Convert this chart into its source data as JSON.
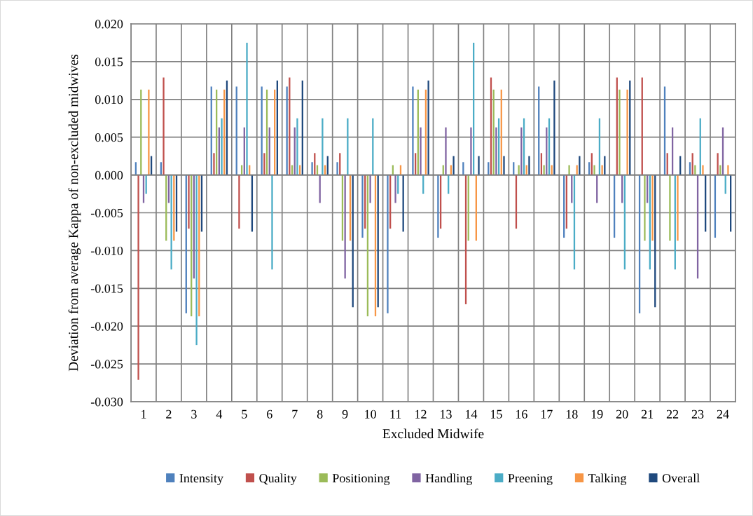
{
  "chart_data": {
    "type": "bar",
    "xlabel": "Excluded Midwife",
    "ylabel": "Deviation from average Kappa of non-excluded midwives",
    "categories": [
      "1",
      "2",
      "3",
      "4",
      "5",
      "6",
      "7",
      "8",
      "9",
      "10",
      "11",
      "12",
      "13",
      "14",
      "15",
      "16",
      "17",
      "18",
      "19",
      "20",
      "21",
      "22",
      "23",
      "24"
    ],
    "series": [
      {
        "name": "Intensity",
        "color": "#4f81bd",
        "values": [
          0.0017,
          0.0017,
          -0.0183,
          0.0117,
          0.0117,
          0.0117,
          0.0117,
          0.0017,
          0.0017,
          -0.0083,
          -0.0183,
          0.0117,
          -0.0083,
          0.0017,
          0.0017,
          0.0017,
          0.0117,
          -0.0083,
          0.0017,
          -0.0083,
          -0.0183,
          0.0117,
          0.0017,
          -0.0083
        ]
      },
      {
        "name": "Quality",
        "color": "#c0504d",
        "values": [
          -0.0271,
          0.0129,
          -0.0071,
          0.0029,
          -0.0071,
          0.0029,
          0.0129,
          0.0029,
          0.0029,
          -0.0071,
          -0.0071,
          0.0029,
          -0.0071,
          -0.0171,
          0.0129,
          -0.0071,
          0.0029,
          -0.0071,
          0.0029,
          0.0129,
          0.0129,
          0.0029,
          0.0029,
          0.0029
        ]
      },
      {
        "name": "Positioning",
        "color": "#9bbb59",
        "values": [
          0.0113,
          -0.0087,
          -0.0187,
          0.0113,
          0.0013,
          0.0113,
          0.0013,
          0.0013,
          -0.0087,
          -0.0187,
          0.0013,
          0.0113,
          0.0013,
          -0.0087,
          0.0113,
          0.0013,
          0.0013,
          0.0013,
          0.0013,
          0.0113,
          -0.0087,
          -0.0087,
          0.0013,
          0.0013
        ]
      },
      {
        "name": "Handling",
        "color": "#8064a2",
        "values": [
          -0.0037,
          -0.0037,
          -0.0137,
          0.0063,
          0.0063,
          0.0063,
          0.0063,
          -0.0037,
          -0.0137,
          -0.0037,
          -0.0037,
          0.0063,
          0.0063,
          0.0063,
          0.0063,
          0.0063,
          0.0063,
          -0.0037,
          -0.0037,
          -0.0037,
          -0.0037,
          0.0063,
          -0.0137,
          0.0063
        ]
      },
      {
        "name": "Preening",
        "color": "#4bacc6",
        "values": [
          -0.0025,
          -0.0125,
          -0.0225,
          0.0075,
          0.0175,
          -0.0125,
          0.0075,
          0.0075,
          0.0075,
          0.0075,
          -0.0025,
          -0.0025,
          -0.0025,
          0.0175,
          0.0075,
          0.0075,
          0.0075,
          -0.0125,
          0.0075,
          -0.0125,
          -0.0125,
          -0.0125,
          0.0075,
          -0.0025
        ]
      },
      {
        "name": "Talking",
        "color": "#f79646",
        "values": [
          0.0113,
          -0.0087,
          -0.0187,
          0.0113,
          0.0013,
          0.0113,
          0.0013,
          0.0013,
          -0.0087,
          -0.0187,
          0.0013,
          0.0113,
          0.0013,
          -0.0087,
          0.0113,
          0.0013,
          0.0013,
          0.0013,
          0.0013,
          0.0113,
          -0.0087,
          -0.0087,
          0.0013,
          0.0013
        ]
      },
      {
        "name": "Overall",
        "color": "#1f497d",
        "values": [
          0.0025,
          -0.0075,
          -0.0075,
          0.0125,
          -0.0075,
          0.0125,
          0.0125,
          0.0025,
          -0.0175,
          -0.0175,
          -0.0075,
          0.0125,
          0.0025,
          0.0025,
          0.0025,
          0.0025,
          0.0125,
          0.0025,
          0.0025,
          0.0125,
          -0.0175,
          0.0025,
          -0.0075,
          -0.0075
        ]
      }
    ],
    "ylim": [
      -0.03,
      0.02
    ],
    "yticks": [
      {
        "value": -0.03,
        "label": "-0.030"
      },
      {
        "value": -0.025,
        "label": "-0.025"
      },
      {
        "value": -0.02,
        "label": "-0.020"
      },
      {
        "value": -0.015,
        "label": "-0.015"
      },
      {
        "value": -0.01,
        "label": "-0.010"
      },
      {
        "value": -0.005,
        "label": "-0.005"
      },
      {
        "value": 0,
        "label": "0.000"
      },
      {
        "value": 0.005,
        "label": "0.005"
      },
      {
        "value": 0.01,
        "label": "0.010"
      },
      {
        "value": 0.015,
        "label": "0.015"
      },
      {
        "value": 0.02,
        "label": "0.020"
      }
    ],
    "grid": true,
    "legend": "bottom"
  }
}
